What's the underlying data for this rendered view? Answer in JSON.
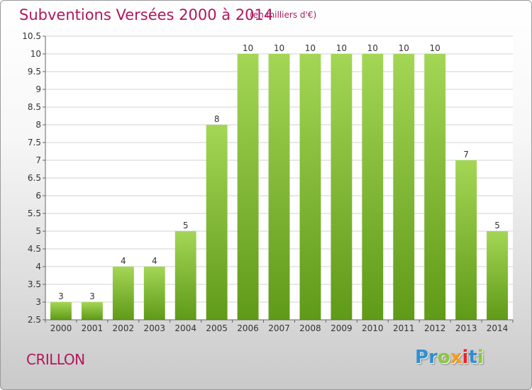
{
  "header": {
    "title": "Subventions Versées 2000 à 2014",
    "subtitle": "(en milliers d'€)"
  },
  "footer": {
    "commune": "CRILLON",
    "logo_letters": [
      {
        "char": "P",
        "color": "#2f8fd0"
      },
      {
        "char": "r",
        "color": "#2f8fd0"
      },
      {
        "char": "o",
        "color": "#8cc63f"
      },
      {
        "char": "x",
        "color": "#f39a1e"
      },
      {
        "char": "i",
        "color": "#e8232a"
      },
      {
        "char": "t",
        "color": "#2f8fd0"
      },
      {
        "char": "i",
        "color": "#8cc63f"
      }
    ]
  },
  "chart_data": {
    "type": "bar",
    "title": "Subventions Versées 2000 à 2014",
    "subtitle": "(en milliers d'€)",
    "categories": [
      "2000",
      "2001",
      "2002",
      "2003",
      "2004",
      "2005",
      "2006",
      "2007",
      "2008",
      "2009",
      "2010",
      "2011",
      "2012",
      "2013",
      "2014"
    ],
    "values": [
      3,
      3,
      4,
      4,
      5,
      8,
      10,
      10,
      10,
      10,
      10,
      10,
      10,
      7,
      5
    ],
    "value_labels": [
      "3",
      "3",
      "4",
      "4",
      "5",
      "8",
      "10",
      "10",
      "10",
      "10",
      "10",
      "10",
      "10",
      "7",
      "5"
    ],
    "ylim": [
      2.5,
      10.5
    ],
    "yticks": [
      "2.5",
      "3",
      "3.5",
      "4",
      "4.5",
      "5",
      "5.5",
      "6",
      "6.5",
      "7",
      "7.5",
      "8",
      "8.5",
      "9",
      "9.5",
      "10",
      "10.5"
    ],
    "grid": true,
    "colors": {
      "bar_top": "#a4d655",
      "bar_bottom": "#5f9a18",
      "grid": "#d2d2d2",
      "axis": "#666666"
    }
  }
}
